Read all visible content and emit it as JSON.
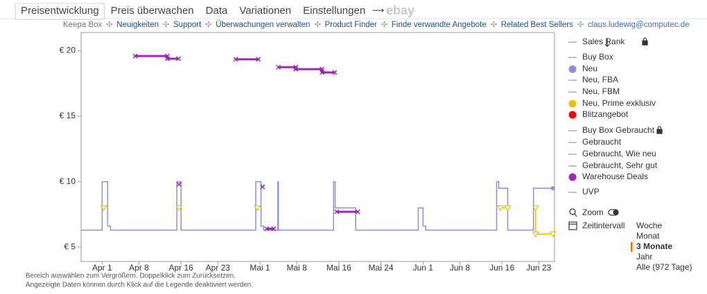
{
  "tabs": [
    "Preisentwicklung",
    "Preis überwachen",
    "Data",
    "Variationen",
    "Einstellungen",
    "ebay"
  ],
  "active_tab": 0,
  "links": [
    "Keepa Box",
    "Neuigkeiten",
    "Support",
    "Überwachungen verwalten",
    "Product Finder",
    "Finde verwandte Angebote",
    "Related Best Sellers",
    "claus.ludewig@computec.de"
  ],
  "chart_data": {
    "type": "line",
    "xlim": [
      -4,
      86
    ],
    "xticks": [
      {
        "value": 0,
        "label": "Apr 1"
      },
      {
        "value": 7,
        "label": "Apr 8"
      },
      {
        "value": 15,
        "label": "Apr 16"
      },
      {
        "value": 22,
        "label": "Apr 23"
      },
      {
        "value": 30,
        "label": "Mai 1"
      },
      {
        "value": 37,
        "label": "Mai 8"
      },
      {
        "value": 45,
        "label": "Mai 16"
      },
      {
        "value": 53,
        "label": "Mai 24"
      },
      {
        "value": 61,
        "label": "Jun 1"
      },
      {
        "value": 68,
        "label": "Jun 8"
      },
      {
        "value": 76,
        "label": "Jun 16"
      },
      {
        "value": 83,
        "label": "Jun 23"
      }
    ],
    "ylim": [
      3.9,
      21.4
    ],
    "yticks": [
      {
        "value": 5,
        "label": "€ 5"
      },
      {
        "value": 10,
        "label": "€ 10"
      },
      {
        "value": 15,
        "label": "€ 15"
      },
      {
        "value": 20,
        "label": "€ 20"
      }
    ],
    "grid": false,
    "series": [
      {
        "name": "Sales Rank",
        "x": [],
        "values": []
      },
      {
        "name": "Buy Box",
        "x": [],
        "values": []
      },
      {
        "name": "Neu",
        "color": "#8a8ee0",
        "step": true,
        "marker": "end-dot",
        "x": [
          -4,
          0,
          1.05,
          1.6,
          14.2,
          15.0,
          29.2,
          30.2,
          30.7,
          33.4,
          33.5,
          44.0,
          44.3,
          48.2,
          60.1,
          61.0,
          61.5,
          75.0,
          75.4,
          77.1,
          82.0,
          85.7
        ],
        "values": [
          6.3,
          10,
          6.6,
          6.3,
          10,
          6.3,
          10,
          6.6,
          6.3,
          10,
          6.3,
          10,
          8.0,
          6.3,
          8.0,
          6.6,
          6.3,
          10,
          9.5,
          6.3,
          9.5,
          9.5
        ]
      },
      {
        "name": "Neu, FBA",
        "x": [],
        "values": []
      },
      {
        "name": "Neu, FBM",
        "x": [],
        "values": []
      },
      {
        "name": "Neu, Prime exklusiv",
        "color": "#e6c000",
        "marker": "triangle",
        "x": [
          0.3,
          null,
          14.6,
          null,
          29.5,
          null,
          75.7,
          77.1,
          null,
          82.4,
          82.4,
          85.7
        ],
        "values": [
          8.0,
          null,
          8.0,
          null,
          8.0,
          null,
          8.0,
          8.0,
          null,
          8.0,
          6.0,
          6.0
        ]
      },
      {
        "name": "Blitzangebot",
        "color": "#ff0000",
        "x": [],
        "values": []
      },
      {
        "name": "Buy Box Gebraucht",
        "x": [],
        "values": []
      },
      {
        "name": "Gebraucht",
        "x": [],
        "values": []
      },
      {
        "name": "Gebraucht, Wie neu",
        "x": [],
        "values": []
      },
      {
        "name": "Gebraucht, Sehr gut",
        "x": [],
        "values": []
      },
      {
        "name": "Warehouse Deals",
        "color": "#9c27b0",
        "marker": "cross",
        "x": [
          6.3,
          12.4,
          12.4,
          14.5,
          null,
          14.6,
          null,
          25.4,
          29.7,
          null,
          30.5,
          null,
          31.3,
          32.6,
          null,
          33.5,
          36.8,
          36.8,
          41.8,
          41.8,
          44.2,
          null,
          44.6,
          48.6
        ],
        "values": [
          19.6,
          19.6,
          19.4,
          19.4,
          null,
          9.8,
          null,
          19.35,
          19.35,
          null,
          9.6,
          null,
          6.4,
          6.4,
          null,
          18.75,
          18.75,
          18.6,
          18.6,
          18.35,
          18.35,
          null,
          7.7,
          7.7
        ]
      },
      {
        "name": "UVP",
        "x": [],
        "values": []
      }
    ]
  },
  "controls": {
    "zoom": "Zoom",
    "interval_label": "Zeitintervall",
    "intervals": [
      "Woche",
      "Monat",
      "3 Monate",
      "Jahr",
      "Alle (972 Tage)"
    ],
    "active_interval": 2
  },
  "notes": [
    "Bereich auswählen zum Vergrößern. Doppelklick zum Zurücksetzen.",
    "Angezeigte Daten können durch Klick auf die Legende deaktiviert werden."
  ]
}
